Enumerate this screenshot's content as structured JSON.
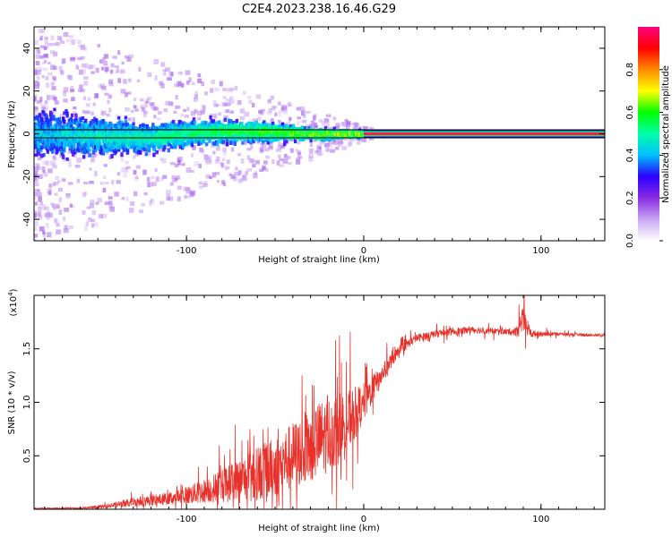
{
  "figure_title": "C2E4.2023.238.16.46.G29",
  "chart_data": [
    {
      "type": "heatmap",
      "title": "",
      "xlabel": "Height of straight line (km)",
      "ylabel": "Frequency (Hz)",
      "xlim": [
        -186,
        136
      ],
      "ylim": [
        -50,
        50
      ],
      "xticks": [
        -100,
        0,
        100
      ],
      "yticks": [
        -40,
        -20,
        0,
        20,
        40
      ],
      "colorbar": {
        "label": "Normalized spectral amplitude",
        "range": [
          0.0,
          1.0
        ],
        "ticks": [
          0.0,
          0.2,
          0.4,
          0.6,
          0.8
        ],
        "colormap": "rainbow",
        "colors": [
          "#ffffff",
          "#c9a6f3",
          "#8a2be2",
          "#2a00ff",
          "#00bfff",
          "#00ffaa",
          "#00ff00",
          "#ffff00",
          "#ff8c00",
          "#ff0000",
          "#ff007f"
        ]
      },
      "band": {
        "description": "spectral energy concentrated near 0 Hz; broad and scattered at low heights, narrowing to a single strong line above ~5 km",
        "profile": [
          {
            "x": -180,
            "halfwidth": 10,
            "center": 0
          },
          {
            "x": -150,
            "halfwidth": 9,
            "center": -1
          },
          {
            "x": -120,
            "halfwidth": 7,
            "center": -2
          },
          {
            "x": -90,
            "halfwidth": 6,
            "center": 1
          },
          {
            "x": -60,
            "halfwidth": 5,
            "center": 1
          },
          {
            "x": -30,
            "halfwidth": 3,
            "center": 0
          },
          {
            "x": 0,
            "halfwidth": 1.5,
            "center": 0
          },
          {
            "x": 5,
            "halfwidth": 0.8,
            "center": 0
          },
          {
            "x": 136,
            "halfwidth": 0.8,
            "center": 0
          }
        ],
        "strong_line": {
          "x_start": 0,
          "x_end": 136,
          "frequency": 0
        }
      }
    },
    {
      "type": "line",
      "title": "",
      "xlabel": "Height of straight line (km)",
      "ylabel": "SNR (10 * v/v)",
      "y_multiplier": "(x10^4)",
      "xlim": [
        -186,
        136
      ],
      "ylim": [
        0,
        2.0
      ],
      "xticks": [
        -100,
        0,
        100
      ],
      "yticks": [
        0.5,
        1.0,
        1.5
      ],
      "color": "#e8312a",
      "envelope": {
        "x": [
          -186,
          -160,
          -150,
          -140,
          -130,
          -120,
          -110,
          -100,
          -90,
          -80,
          -70,
          -60,
          -50,
          -40,
          -35,
          -30,
          -25,
          -20,
          -15,
          -10,
          -5,
          0,
          5,
          10,
          15,
          20,
          25,
          30,
          40,
          50,
          60,
          70,
          80,
          85,
          88,
          90,
          92,
          95,
          100,
          110,
          120,
          136
        ],
        "mean": [
          0.01,
          0.01,
          0.02,
          0.04,
          0.07,
          0.08,
          0.1,
          0.13,
          0.17,
          0.22,
          0.28,
          0.33,
          0.4,
          0.5,
          0.55,
          0.6,
          0.65,
          0.7,
          0.75,
          0.8,
          0.9,
          1.0,
          1.12,
          1.25,
          1.38,
          1.48,
          1.55,
          1.6,
          1.64,
          1.66,
          1.68,
          1.67,
          1.66,
          1.66,
          1.7,
          1.75,
          1.7,
          1.64,
          1.64,
          1.64,
          1.63,
          1.63
        ],
        "noise": [
          0.005,
          0.01,
          0.02,
          0.04,
          0.06,
          0.07,
          0.08,
          0.12,
          0.16,
          0.22,
          0.28,
          0.35,
          0.4,
          0.45,
          0.48,
          0.5,
          0.52,
          0.5,
          0.48,
          0.42,
          0.35,
          0.25,
          0.18,
          0.14,
          0.1,
          0.07,
          0.06,
          0.05,
          0.05,
          0.05,
          0.05,
          0.04,
          0.04,
          0.05,
          0.15,
          0.2,
          0.12,
          0.05,
          0.03,
          0.02,
          0.02,
          0.02
        ]
      }
    }
  ]
}
